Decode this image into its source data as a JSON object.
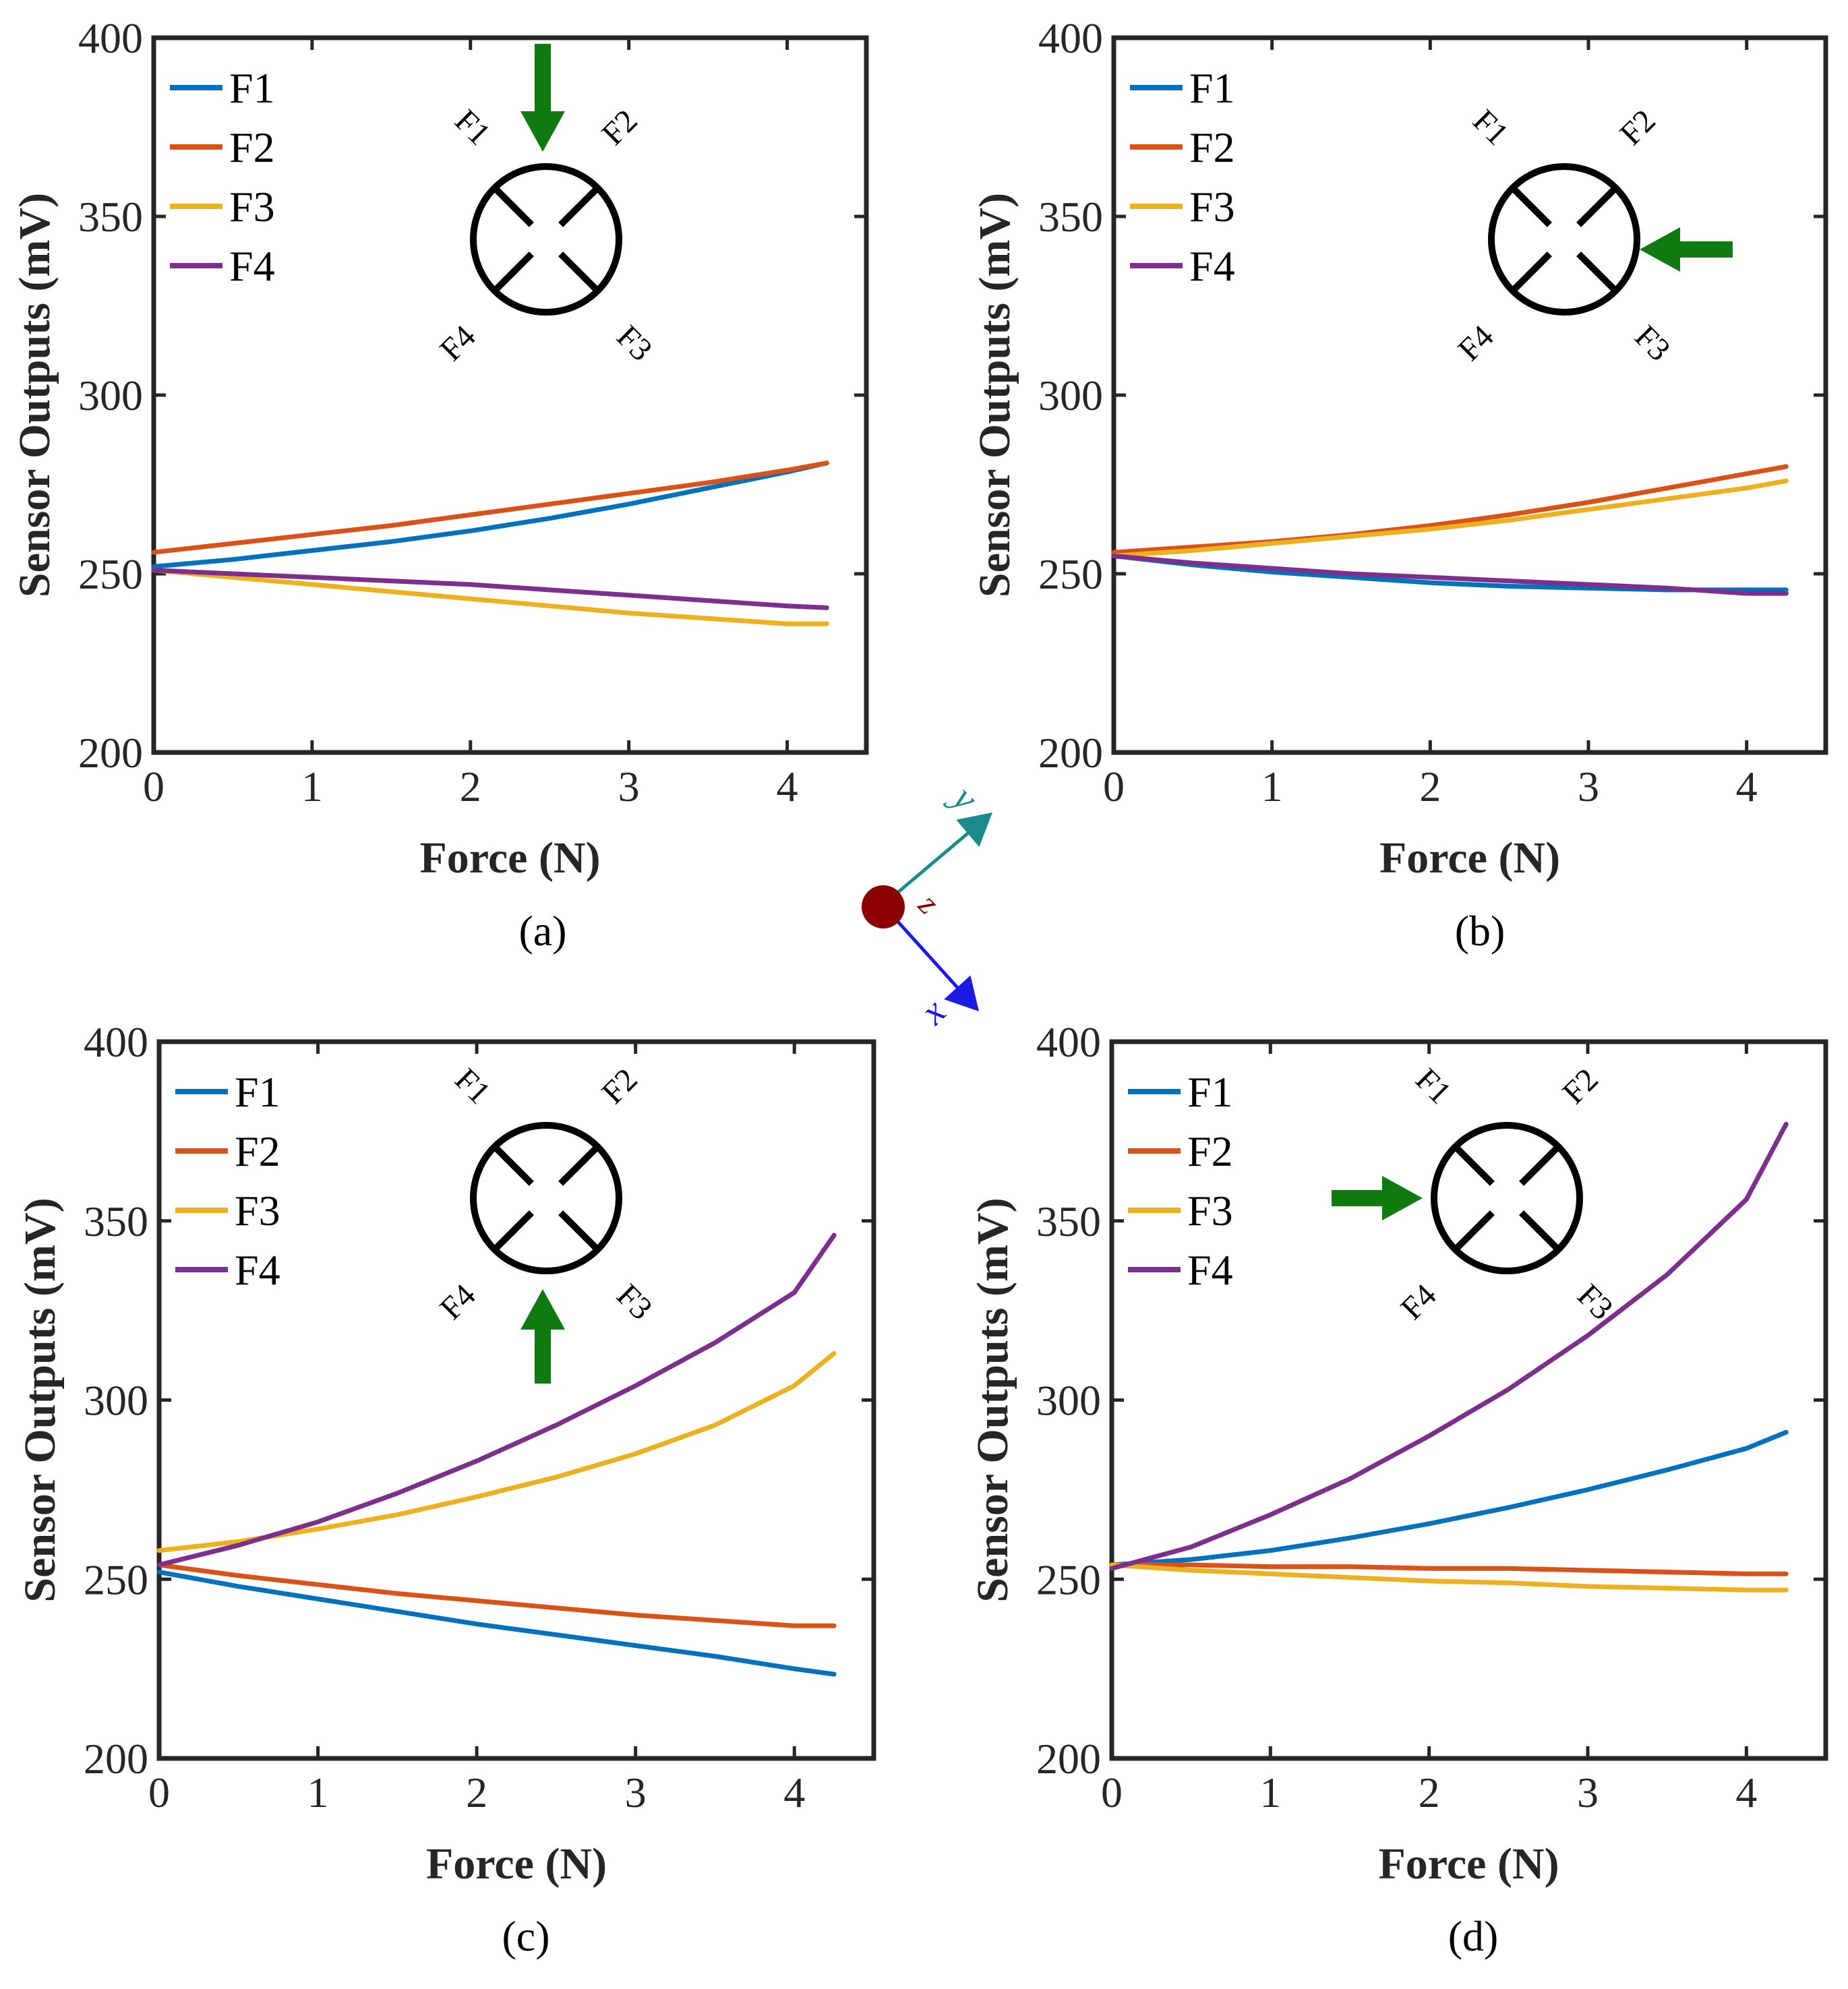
{
  "chart_data": [
    {
      "type": "line",
      "caption": "(a)",
      "xlabel": "Force (N)",
      "ylabel": "Sensor Outputs (mV)",
      "xlim": [
        0,
        4.5
      ],
      "ylim": [
        200,
        400
      ],
      "xticks": [
        "0",
        "1",
        "2",
        "3",
        "4"
      ],
      "yticks": [
        "200",
        "250",
        "300",
        "350",
        "400"
      ],
      "legend_position": "top-left",
      "force_direction": "down",
      "sensor_labels": [
        "F1",
        "F2",
        "F3",
        "F4"
      ],
      "series": [
        {
          "name": "F1",
          "color": "#0072BD",
          "x": [
            0,
            0.5,
            1,
            1.5,
            2,
            2.5,
            3,
            3.5,
            4,
            4.25
          ],
          "y": [
            252,
            254,
            256.5,
            259,
            262,
            265.5,
            269.5,
            274,
            278.5,
            281
          ]
        },
        {
          "name": "F2",
          "color": "#D95319",
          "x": [
            0,
            0.5,
            1,
            1.5,
            2,
            2.5,
            3,
            3.5,
            4,
            4.25
          ],
          "y": [
            256,
            258.5,
            261,
            263.5,
            266.5,
            269.5,
            272.5,
            275.5,
            279,
            281
          ]
        },
        {
          "name": "F3",
          "color": "#EDB120",
          "x": [
            0,
            0.5,
            1,
            1.5,
            2,
            2.5,
            3,
            3.5,
            4,
            4.25
          ],
          "y": [
            251,
            249,
            247,
            245,
            243,
            241,
            239,
            237.5,
            236,
            236
          ]
        },
        {
          "name": "F4",
          "color": "#7E2F8E",
          "x": [
            0,
            0.5,
            1,
            1.5,
            2,
            2.5,
            3,
            3.5,
            4,
            4.25
          ],
          "y": [
            251,
            250,
            249,
            248,
            247,
            245.5,
            244,
            242.5,
            241,
            240.5
          ]
        }
      ]
    },
    {
      "type": "line",
      "caption": "(b)",
      "xlabel": "Force (N)",
      "ylabel": "Sensor Outputs (mV)",
      "xlim": [
        0,
        4.5
      ],
      "ylim": [
        200,
        400
      ],
      "xticks": [
        "0",
        "1",
        "2",
        "3",
        "4"
      ],
      "yticks": [
        "200",
        "250",
        "300",
        "350",
        "400"
      ],
      "legend_position": "top-left",
      "force_direction": "left",
      "sensor_labels": [
        "F1",
        "F2",
        "F3",
        "F4"
      ],
      "series": [
        {
          "name": "F1",
          "color": "#0072BD",
          "x": [
            0,
            0.5,
            1,
            1.5,
            2,
            2.5,
            3,
            3.5,
            4,
            4.25
          ],
          "y": [
            255,
            252.5,
            250.5,
            249,
            247.5,
            246.5,
            246,
            245.5,
            245.5,
            245.5
          ]
        },
        {
          "name": "F2",
          "color": "#D95319",
          "x": [
            0,
            0.5,
            1,
            1.5,
            2,
            2.5,
            3,
            3.5,
            4,
            4.25
          ],
          "y": [
            256,
            257.5,
            259,
            261,
            263.5,
            266.5,
            270,
            274,
            278,
            280
          ]
        },
        {
          "name": "F3",
          "color": "#EDB120",
          "x": [
            0,
            0.5,
            1,
            1.5,
            2,
            2.5,
            3,
            3.5,
            4,
            4.25
          ],
          "y": [
            255,
            256.5,
            258.5,
            260.5,
            262.5,
            265,
            268,
            271,
            274,
            276
          ]
        },
        {
          "name": "F4",
          "color": "#7E2F8E",
          "x": [
            0,
            0.5,
            1,
            1.5,
            2,
            2.5,
            3,
            3.5,
            4,
            4.25
          ],
          "y": [
            255,
            253,
            251.5,
            250,
            249,
            248,
            247,
            246,
            244.5,
            244.5
          ]
        }
      ]
    },
    {
      "type": "line",
      "caption": "(c)",
      "xlabel": "Force (N)",
      "ylabel": "Sensor Outputs (mV)",
      "xlim": [
        0,
        4.5
      ],
      "ylim": [
        200,
        400
      ],
      "xticks": [
        "0",
        "1",
        "2",
        "3",
        "4"
      ],
      "yticks": [
        "200",
        "250",
        "300",
        "350",
        "400"
      ],
      "legend_position": "top-left",
      "force_direction": "up",
      "sensor_labels": [
        "F1",
        "F2",
        "F3",
        "F4"
      ],
      "series": [
        {
          "name": "F1",
          "color": "#0072BD",
          "x": [
            0,
            0.5,
            1,
            1.5,
            2,
            2.5,
            3,
            3.5,
            4,
            4.25
          ],
          "y": [
            252,
            248,
            244.5,
            241,
            237.5,
            234.5,
            231.5,
            228.5,
            225,
            223.5
          ]
        },
        {
          "name": "F2",
          "color": "#D95319",
          "x": [
            0,
            0.5,
            1,
            1.5,
            2,
            2.5,
            3,
            3.5,
            4,
            4.25
          ],
          "y": [
            254,
            251,
            248.5,
            246,
            244,
            242,
            240,
            238.5,
            237,
            237
          ]
        },
        {
          "name": "F3",
          "color": "#EDB120",
          "x": [
            0,
            0.5,
            1,
            1.5,
            2,
            2.5,
            3,
            3.5,
            4,
            4.25
          ],
          "y": [
            258,
            260.5,
            264,
            268,
            273,
            278.5,
            285,
            293,
            304,
            313
          ]
        },
        {
          "name": "F4",
          "color": "#7E2F8E",
          "x": [
            0,
            0.5,
            1,
            1.5,
            2,
            2.5,
            3,
            3.5,
            4,
            4.25
          ],
          "y": [
            254,
            259.5,
            266,
            274,
            283,
            293,
            304,
            316,
            330,
            346
          ]
        }
      ]
    },
    {
      "type": "line",
      "caption": "(d)",
      "xlabel": "Force (N)",
      "ylabel": "Sensor Outputs (mV)",
      "xlim": [
        0,
        4.5
      ],
      "ylim": [
        200,
        400
      ],
      "xticks": [
        "0",
        "1",
        "2",
        "3",
        "4"
      ],
      "yticks": [
        "200",
        "250",
        "300",
        "350",
        "400"
      ],
      "legend_position": "top-left",
      "force_direction": "right",
      "sensor_labels": [
        "F1",
        "F2",
        "F3",
        "F4"
      ],
      "series": [
        {
          "name": "F1",
          "color": "#0072BD",
          "x": [
            0,
            0.5,
            1,
            1.5,
            2,
            2.5,
            3,
            3.5,
            4,
            4.25
          ],
          "y": [
            254,
            255.5,
            258,
            261.5,
            265.5,
            270,
            275,
            280.5,
            286.5,
            291
          ]
        },
        {
          "name": "F2",
          "color": "#D95319",
          "x": [
            0,
            0.5,
            1,
            1.5,
            2,
            2.5,
            3,
            3.5,
            4,
            4.25
          ],
          "y": [
            254,
            254,
            253.5,
            253.5,
            253,
            253,
            252.5,
            252,
            251.5,
            251.5
          ]
        },
        {
          "name": "F3",
          "color": "#EDB120",
          "x": [
            0,
            0.5,
            1,
            1.5,
            2,
            2.5,
            3,
            3.5,
            4,
            4.25
          ],
          "y": [
            254,
            252.5,
            251.5,
            250.5,
            249.5,
            249,
            248,
            247.5,
            247,
            247
          ]
        },
        {
          "name": "F4",
          "color": "#7E2F8E",
          "x": [
            0,
            0.5,
            1,
            1.5,
            2,
            2.5,
            3,
            3.5,
            4,
            4.25
          ],
          "y": [
            253,
            259,
            268,
            278,
            290,
            303,
            318,
            335,
            356,
            377
          ]
        }
      ]
    }
  ],
  "coordinate_frame": {
    "x_label": "x",
    "y_label": "y",
    "z_label": "z",
    "x_color": "#1A1AE6",
    "y_color": "#1A8C8C",
    "z_color": "#8B0000"
  },
  "colors": {
    "axes": "#262626",
    "arrow": "#0F7A0F"
  }
}
